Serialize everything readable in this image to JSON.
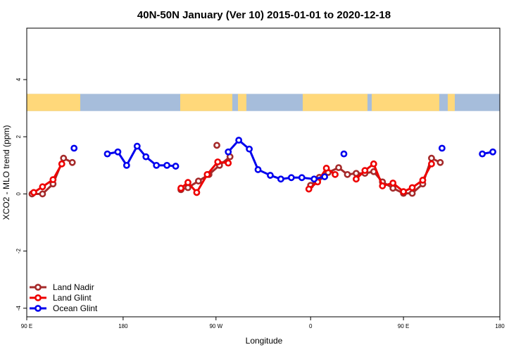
{
  "chart_data": {
    "type": "line",
    "title": "40N-50N January (Ver 10)   2015-01-01 to 2020-12-18",
    "xlabel": "Longitude",
    "ylabel": "XCO2 - MLO trend (ppm)",
    "xlim": [
      -90,
      180
    ],
    "ylim": [
      -4.3,
      5.8
    ],
    "x_ticks": [
      {
        "value": -90,
        "label": "90 E"
      },
      {
        "value": -35,
        "label": "180"
      },
      {
        "value": 18,
        "label": "90 W"
      },
      {
        "value": 72,
        "label": "0"
      },
      {
        "value": 125,
        "label": "90 E"
      },
      {
        "value": 180,
        "label": "180"
      }
    ],
    "y_ticks": [
      {
        "value": -4,
        "label": "-4"
      },
      {
        "value": -2,
        "label": "-2"
      },
      {
        "value": 0,
        "label": "0"
      },
      {
        "value": 2,
        "label": "2"
      },
      {
        "value": 4,
        "label": "4"
      }
    ],
    "map_band": {
      "y_range": [
        2.9,
        3.5
      ],
      "ocean_color": "#a6bddb",
      "land_color": "#ffd87a"
    },
    "legend_position": "bottom-left",
    "series": [
      {
        "name": "Land Nadir",
        "color": "#a52a2a",
        "segments": [
          [
            [
              -87,
              0.0
            ],
            [
              -81,
              0.0
            ],
            [
              -75,
              0.35
            ],
            [
              -69,
              1.25
            ],
            [
              -64,
              1.1
            ]
          ],
          [
            [
              18.5,
              1.7
            ]
          ],
          [
            [
              -2,
              0.15
            ],
            [
              2,
              0.22
            ],
            [
              8,
              0.45
            ],
            [
              14,
              0.68
            ],
            [
              20,
              1.0
            ],
            [
              26,
              1.3
            ]
          ],
          [
            [
              72,
              0.3
            ],
            [
              77,
              0.58
            ],
            [
              82,
              0.75
            ],
            [
              88,
              0.92
            ],
            [
              93,
              0.68
            ],
            [
              98,
              0.72
            ],
            [
              103,
              0.72
            ],
            [
              108,
              0.78
            ],
            [
              113,
              0.42
            ],
            [
              119,
              0.2
            ],
            [
              125,
              0.02
            ],
            [
              130,
              0.02
            ],
            [
              136,
              0.35
            ],
            [
              141,
              1.25
            ],
            [
              146,
              1.1
            ]
          ]
        ]
      },
      {
        "name": "Land Glint",
        "color": "#ee0000",
        "segments": [
          [
            [
              -86,
              0.05
            ],
            [
              -81,
              0.25
            ],
            [
              -75,
              0.5
            ],
            [
              -70,
              1.05
            ]
          ],
          [
            [
              -2,
              0.2
            ],
            [
              2,
              0.4
            ],
            [
              7,
              0.05
            ],
            [
              13,
              0.68
            ],
            [
              19,
              1.12
            ],
            [
              25,
              1.08
            ]
          ],
          [
            [
              71,
              0.17
            ],
            [
              76,
              0.42
            ],
            [
              81,
              0.9
            ],
            [
              86,
              0.68
            ]
          ],
          [
            [
              98,
              0.52
            ],
            [
              103,
              0.82
            ],
            [
              108,
              1.05
            ],
            [
              113,
              0.28
            ],
            [
              119,
              0.38
            ],
            [
              125,
              0.08
            ],
            [
              130,
              0.22
            ],
            [
              136,
              0.48
            ],
            [
              141,
              1.05
            ]
          ]
        ]
      },
      {
        "name": "Ocean Glint",
        "color": "#0000ee",
        "segments": [
          [
            [
              -63,
              1.6
            ]
          ],
          [
            [
              -44,
              1.4
            ],
            [
              -38,
              1.47
            ],
            [
              -33,
              1.0
            ],
            [
              -27,
              1.67
            ],
            [
              -22,
              1.3
            ],
            [
              -16,
              1.0
            ],
            [
              -10,
              1.0
            ],
            [
              -5,
              0.97
            ]
          ],
          [
            [
              25,
              1.47
            ],
            [
              31,
              1.88
            ],
            [
              37,
              1.57
            ],
            [
              42,
              0.85
            ],
            [
              49,
              0.65
            ],
            [
              55,
              0.52
            ],
            [
              61,
              0.57
            ],
            [
              67,
              0.57
            ],
            [
              74,
              0.52
            ],
            [
              80,
              0.6
            ]
          ],
          [
            [
              91,
              1.4
            ]
          ],
          [
            [
              147,
              1.6
            ]
          ],
          [
            [
              170,
              1.4
            ],
            [
              176,
              1.47
            ]
          ]
        ]
      }
    ]
  }
}
